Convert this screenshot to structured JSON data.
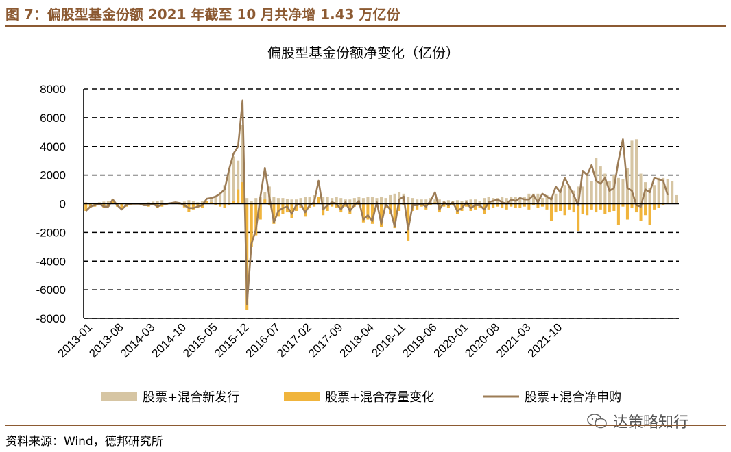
{
  "figure": {
    "title": "图 7：偏股型基金份额 2021 年截至 10 月共净增 1.43 万亿份",
    "source": "资料来源：Wind，德邦研究所",
    "watermark": "达策略知行"
  },
  "colors": {
    "accent": "#8c5a32",
    "new_issue": "#d6c5a3",
    "stock_change": "#f0b43c",
    "net_line": "#9c7c56",
    "grid": "#000000"
  },
  "chart_data": {
    "type": "bar",
    "title": "偏股型基金份额净变化（亿份）",
    "ylim": [
      -8000,
      8000
    ],
    "yticks": [
      8000,
      6000,
      4000,
      2000,
      0,
      -2000,
      -4000,
      -6000,
      -8000
    ],
    "grid": "horizontal-dashed",
    "legend_position": "bottom",
    "x_tick_labels": [
      "2013-01",
      "2013-08",
      "2014-03",
      "2014-10",
      "2015-05",
      "2015-12",
      "2016-07",
      "2017-02",
      "2017-09",
      "2018-04",
      "2018-11",
      "2019-06",
      "2020-01",
      "2020-08",
      "2021-03",
      "2021-10"
    ],
    "x_start": "2013-01",
    "x_end": "2021-10",
    "series": [
      {
        "name": "股票+混合新发行",
        "type": "bar",
        "values": [
          100,
          50,
          50,
          100,
          150,
          200,
          150,
          0,
          50,
          50,
          50,
          50,
          50,
          50,
          100,
          150,
          200,
          250,
          50,
          50,
          50,
          100,
          150,
          250,
          200,
          100,
          200,
          150,
          300,
          500,
          800,
          1300,
          2500,
          3300,
          3000,
          5500,
          400,
          200,
          400,
          500,
          800,
          1200,
          500,
          400,
          400,
          350,
          300,
          300,
          400,
          500,
          500,
          600,
          500,
          500,
          500,
          400,
          500,
          400,
          300,
          300,
          400,
          500,
          400,
          500,
          500,
          400,
          500,
          400,
          600,
          700,
          800,
          700,
          500,
          400,
          300,
          300,
          300,
          400,
          300,
          300,
          200,
          250,
          200,
          250,
          200,
          250,
          300,
          300,
          200,
          400,
          500,
          400,
          400,
          500,
          400,
          500,
          500,
          400,
          500,
          700,
          700,
          700,
          400,
          600,
          500,
          700,
          800,
          1300,
          1200,
          900,
          1200,
          1200,
          2000,
          1600,
          3200,
          2600,
          2100,
          1600,
          2000,
          1800,
          1700,
          2500,
          4400,
          4500,
          2100,
          1500,
          1100,
          1300,
          1800,
          1800,
          1700,
          1600,
          600
        ]
      },
      {
        "name": "股票+混合存量变化",
        "type": "bar",
        "values": [
          -500,
          -300,
          -200,
          -100,
          -300,
          -200,
          300,
          -200,
          -400,
          -200,
          -100,
          -50,
          -50,
          -100,
          -200,
          -100,
          -300,
          -200,
          -100,
          50,
          100,
          -50,
          -250,
          -550,
          -400,
          -300,
          -300,
          200,
          100,
          -100,
          -200,
          -300,
          -100,
          200,
          1000,
          1500,
          -7400,
          -3000,
          -2200,
          -1100,
          300,
          -100,
          -1400,
          -900,
          -700,
          -600,
          -1000,
          -500,
          -300,
          -900,
          -300,
          -200,
          500,
          -800,
          -500,
          -200,
          -300,
          -600,
          -200,
          -700,
          -200,
          -100,
          -1300,
          -1100,
          -1400,
          -200,
          -1600,
          -300,
          -700,
          -1700,
          -500,
          -100,
          -2600,
          -500,
          -400,
          -200,
          -400,
          -100,
          100,
          -600,
          -200,
          -300,
          -100,
          -700,
          -500,
          -200,
          -500,
          -400,
          -300,
          -700,
          -400,
          -300,
          -200,
          -300,
          -400,
          -200,
          -300,
          -300,
          -200,
          -400,
          -100,
          -300,
          -200,
          -400,
          -1200,
          -600,
          -500,
          -800,
          -400,
          -600,
          -1900,
          -700,
          -800,
          -400,
          -600,
          -400,
          -700,
          -600,
          -500,
          -1500,
          -200,
          -1100,
          -300,
          -600,
          -1200,
          -800,
          -1500,
          -400,
          -300,
          -100,
          0,
          0
        ]
      },
      {
        "name": "股票+混合净申购",
        "type": "line",
        "values": [
          -500,
          -200,
          -100,
          0,
          -200,
          -200,
          300,
          -100,
          -400,
          -100,
          0,
          0,
          0,
          -100,
          -100,
          0,
          -200,
          -50,
          0,
          50,
          100,
          50,
          -100,
          -300,
          -300,
          -200,
          -100,
          350,
          400,
          500,
          700,
          1000,
          2400,
          3500,
          4000,
          7200,
          -7000,
          -2800,
          -1800,
          500,
          2500,
          500,
          -1300,
          -500,
          -300,
          -200,
          -700,
          -100,
          0,
          -600,
          -100,
          100,
          1600,
          -400,
          -100,
          100,
          0,
          -400,
          100,
          -500,
          -100,
          200,
          -1100,
          -800,
          -1200,
          100,
          -1400,
          -50,
          -400,
          -1600,
          300,
          500,
          -1800,
          -100,
          -100,
          0,
          -200,
          200,
          800,
          -400,
          100,
          -100,
          100,
          -500,
          -300,
          100,
          -300,
          -100,
          -100,
          -400,
          100,
          200,
          300,
          100,
          0,
          300,
          200,
          400,
          300,
          300,
          600,
          100,
          700,
          500,
          300,
          1200,
          800,
          1800,
          1200,
          600,
          -100,
          2300,
          2000,
          2700,
          1600,
          1400,
          1800,
          900,
          1100,
          3000,
          4500,
          1100,
          900,
          -100,
          -200,
          1000,
          800,
          1800,
          1700,
          1600,
          600
        ]
      }
    ]
  }
}
